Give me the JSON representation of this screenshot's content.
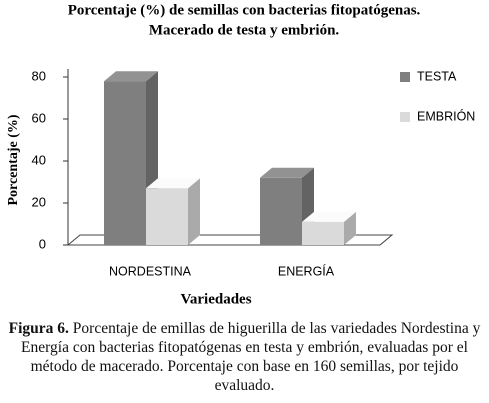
{
  "chart_data": {
    "type": "bar3d",
    "title": [
      "Porcentaje (%) de  semillas con bacterias fitopatógenas.",
      "Macerado de testa y embrión."
    ],
    "y_label": "Porcentaje  (%)",
    "x_label": "Variedades",
    "categories": [
      "NORDESTINA",
      "ENERGÍA"
    ],
    "series": [
      {
        "name": "TESTA",
        "color": "#7f7f7f",
        "values": [
          78,
          32
        ]
      },
      {
        "name": "EMBRIÓN",
        "color": "#dadada",
        "values": [
          27,
          11
        ]
      }
    ],
    "ylim": [
      0,
      80
    ],
    "yticks": [
      0,
      20,
      40,
      60,
      80
    ],
    "legend": "right"
  },
  "caption": {
    "label": "Figura 6.",
    "text": "Porcentaje de emillas de higuerilla de las variedades Nordestina y Energía con bacterias fitopatógenas en testa y embrión, evaluadas por el método de macerado. Porcentaje con base en 160 semillas, por tejido evaluado."
  }
}
